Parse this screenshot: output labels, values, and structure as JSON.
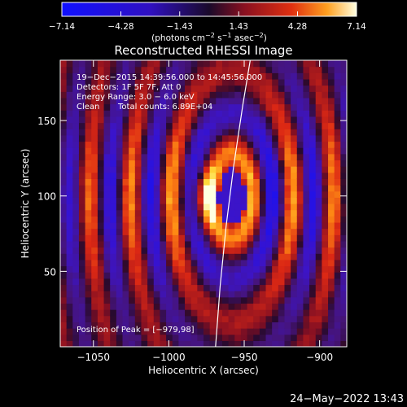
{
  "chart_data": {
    "type": "heatmap",
    "title": "Reconstructed RHESSI Image",
    "xlabel": "Heliocentric X (arcsec)",
    "ylabel": "Heliocentric Y (arcsec)",
    "xlim": [
      -1072,
      -882
    ],
    "ylim": [
      0,
      190
    ],
    "x_ticks": [
      {
        "value": -1050,
        "label": "−1050"
      },
      {
        "value": -1000,
        "label": "−1000"
      },
      {
        "value": -950,
        "label": "−950"
      },
      {
        "value": -900,
        "label": "−900"
      }
    ],
    "y_ticks": [
      {
        "value": 50,
        "label": "50"
      },
      {
        "value": 100,
        "label": "100"
      },
      {
        "value": 150,
        "label": "150"
      }
    ],
    "colorbar": {
      "min": -7.14,
      "max": 7.14,
      "tick_labels": [
        "−7.14",
        "−4.28",
        "−1.43",
        "1.43",
        "4.28",
        "7.14"
      ],
      "tick_values": [
        -7.14,
        -4.28,
        -1.43,
        1.43,
        4.28,
        7.14
      ],
      "units_prefix": "(photons cm",
      "units_exp1": "−2",
      "units_mid1": " s",
      "units_exp2": "−1",
      "units_mid2": " asec",
      "units_exp3": "−2",
      "units_suffix": ")"
    },
    "pattern": {
      "peak_x": -979,
      "peak_y": 98,
      "center_x": -958,
      "center_y": 100,
      "ring_period": 27,
      "peak_value": 7.14
    },
    "limb_curve": [
      [
        -969,
        0
      ],
      [
        -966,
        40
      ],
      [
        -962,
        80
      ],
      [
        -957,
        120
      ],
      [
        -951,
        160
      ],
      [
        -946,
        190
      ]
    ],
    "annotations": {
      "line1": "19−Dec−2015 14:39:56.000 to 14:45:56.000",
      "line2": "Detectors: 1F 5F 7F, Att 0",
      "line3": "Energy Range: 3.0 − 6.0 keV",
      "line4_method": "Clean",
      "line4_counts": "Total counts: 6.89E+04",
      "peak_label": "Position of Peak = [−979,98]"
    }
  },
  "footer": {
    "timestamp": "24−May−2022 13:43"
  }
}
